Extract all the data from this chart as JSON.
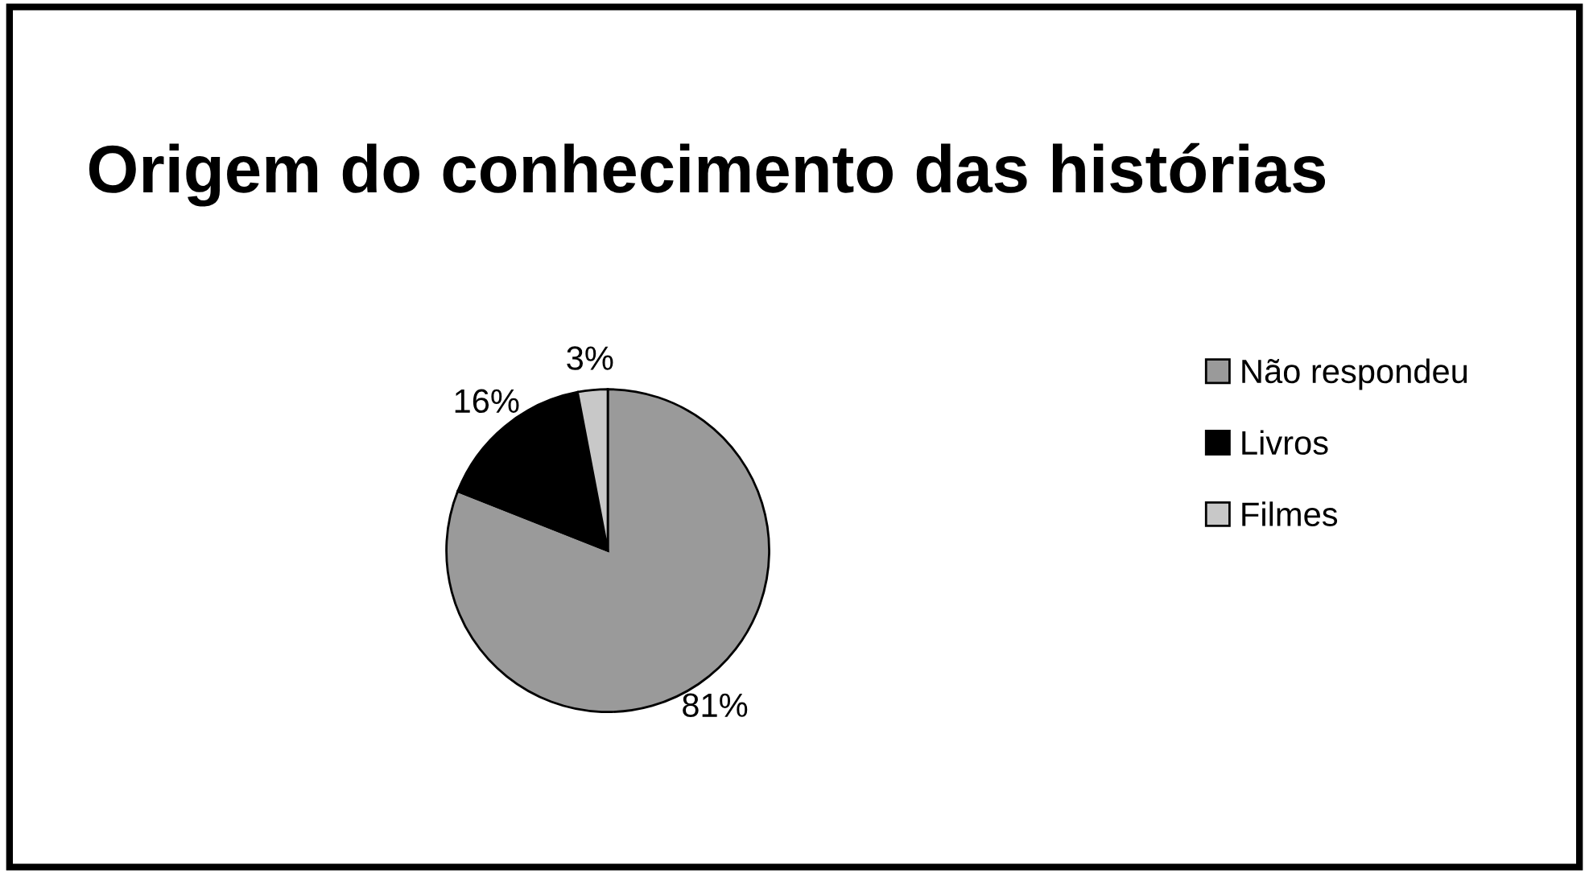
{
  "chart_data": {
    "type": "pie",
    "title": "Origem do conhecimento das histórias",
    "categories": [
      "Não respondeu",
      "Livros",
      "Filmes"
    ],
    "values": [
      81,
      16,
      3
    ],
    "colors": [
      "#9a9a9a",
      "#000000",
      "#c8c8c8"
    ],
    "value_labels": [
      "81%",
      "16%",
      "3%"
    ],
    "legend": "right"
  }
}
